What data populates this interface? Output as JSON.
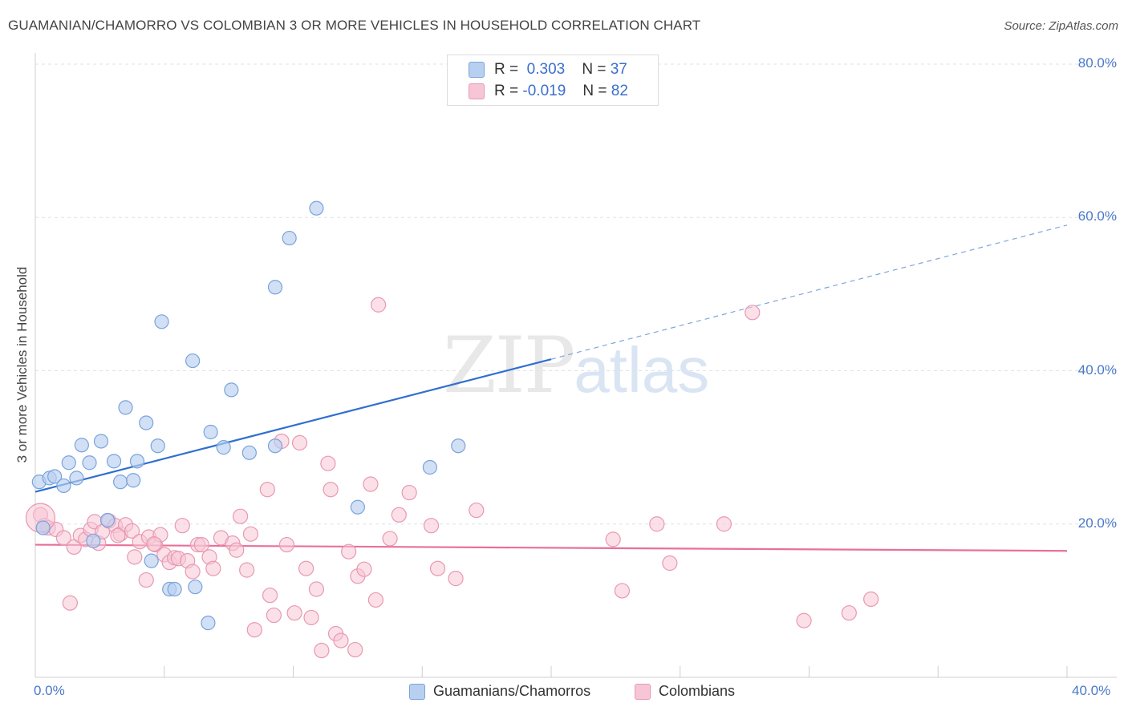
{
  "title": "GUAMANIAN/CHAMORRO VS COLOMBIAN 3 OR MORE VEHICLES IN HOUSEHOLD CORRELATION CHART",
  "source": "Source: ZipAtlas.com",
  "watermark": {
    "zip": "ZIP",
    "atlas": "atlas"
  },
  "legend": {
    "rows": [
      {
        "r_label": "R =",
        "r_value": "0.303",
        "n_label": "N =",
        "n_value": "37"
      },
      {
        "r_label": "R =",
        "r_value": "-0.019",
        "n_label": "N =",
        "n_value": "82"
      }
    ]
  },
  "bottom_legend": [
    "Guamanians/Chamorros",
    "Colombians"
  ],
  "colors": {
    "blue_fill": "#b8d0f0",
    "blue_stroke": "#7aa3dc",
    "blue_line": "#2f6fd0",
    "pink_fill": "#f7c6d6",
    "pink_stroke": "#e898b3",
    "pink_line": "#e8709a",
    "tick_text": "#4a78c8"
  },
  "chart_data": {
    "type": "scatter",
    "title": "GUAMANIAN/CHAMORRO VS COLOMBIAN 3 OR MORE VEHICLES IN HOUSEHOLD CORRELATION CHART",
    "xlabel": "",
    "ylabel": "3 or more Vehicles in Household",
    "xlim": [
      0,
      40
    ],
    "ylim": [
      0,
      80
    ],
    "x_tick_labels": [
      "0.0%",
      "40.0%"
    ],
    "y_tick_labels": [
      "20.0%",
      "40.0%",
      "60.0%",
      "80.0%"
    ],
    "y_ticks": [
      20,
      40,
      60,
      80
    ],
    "grid": true,
    "legend_placement": "top-center",
    "series": [
      {
        "name": "Guamanians/Chamorros",
        "color": "#b8d0f0",
        "r": 0.303,
        "n": 37,
        "trend": {
          "x0": 0,
          "y0": 24.2,
          "x1": 20,
          "y1": 41.5,
          "dashed_to_x": 40,
          "dashed_to_y": 59
        },
        "points": [
          [
            0.15,
            25.5
          ],
          [
            0.3,
            19.5
          ],
          [
            0.55,
            26
          ],
          [
            0.75,
            26.2
          ],
          [
            1.1,
            25
          ],
          [
            1.3,
            28
          ],
          [
            1.6,
            26
          ],
          [
            1.8,
            30.3
          ],
          [
            2.1,
            28
          ],
          [
            2.55,
            30.8
          ],
          [
            2.8,
            20.5
          ],
          [
            3.05,
            28.2
          ],
          [
            3.3,
            25.5
          ],
          [
            3.5,
            35.2
          ],
          [
            3.8,
            25.7
          ],
          [
            3.95,
            28.2
          ],
          [
            4.3,
            33.2
          ],
          [
            4.5,
            15.2
          ],
          [
            4.75,
            30.2
          ],
          [
            4.9,
            46.4
          ],
          [
            5.2,
            11.5
          ],
          [
            5.4,
            11.5
          ],
          [
            6.1,
            41.3
          ],
          [
            6.2,
            11.8
          ],
          [
            6.7,
            7.1
          ],
          [
            6.8,
            32
          ],
          [
            7.3,
            30
          ],
          [
            7.6,
            37.5
          ],
          [
            8.3,
            29.3
          ],
          [
            9.3,
            30.2
          ],
          [
            9.3,
            50.9
          ],
          [
            9.85,
            57.3
          ],
          [
            10.9,
            61.2
          ],
          [
            12.5,
            22.2
          ],
          [
            15.3,
            27.4
          ],
          [
            16.4,
            30.2
          ],
          [
            2.25,
            17.8
          ]
        ]
      },
      {
        "name": "Colombians",
        "color": "#f7c6d6",
        "r": -0.019,
        "n": 82,
        "trend": {
          "x0": 0,
          "y0": 17.3,
          "x1": 40,
          "y1": 16.5
        },
        "points": [
          [
            0.2,
            21.2
          ],
          [
            0.35,
            19.8
          ],
          [
            0.5,
            19.5
          ],
          [
            0.8,
            19.3
          ],
          [
            1.1,
            18.2
          ],
          [
            1.35,
            9.7
          ],
          [
            1.5,
            17
          ],
          [
            1.75,
            18.5
          ],
          [
            1.95,
            18
          ],
          [
            2.15,
            19.3
          ],
          [
            2.3,
            20.3
          ],
          [
            2.45,
            17.5
          ],
          [
            2.6,
            19
          ],
          [
            2.85,
            20.4
          ],
          [
            3.1,
            19.8
          ],
          [
            3.3,
            18.7
          ],
          [
            3.5,
            19.9
          ],
          [
            3.75,
            19.1
          ],
          [
            3.85,
            15.7
          ],
          [
            4.05,
            17.7
          ],
          [
            4.3,
            12.7
          ],
          [
            4.4,
            18.3
          ],
          [
            4.65,
            17.3
          ],
          [
            4.85,
            18.6
          ],
          [
            5.0,
            16
          ],
          [
            5.2,
            15
          ],
          [
            5.4,
            15.6
          ],
          [
            5.55,
            15.5
          ],
          [
            5.7,
            19.8
          ],
          [
            5.9,
            15.2
          ],
          [
            6.1,
            13.8
          ],
          [
            6.3,
            17.3
          ],
          [
            6.45,
            17.3
          ],
          [
            6.75,
            15.7
          ],
          [
            6.9,
            14.2
          ],
          [
            7.2,
            18.2
          ],
          [
            7.65,
            17.5
          ],
          [
            7.8,
            16.6
          ],
          [
            7.95,
            21
          ],
          [
            8.2,
            14
          ],
          [
            8.35,
            18.7
          ],
          [
            8.5,
            6.2
          ],
          [
            9.0,
            24.5
          ],
          [
            9.1,
            10.7
          ],
          [
            9.25,
            8.1
          ],
          [
            9.55,
            30.8
          ],
          [
            9.75,
            17.3
          ],
          [
            10.05,
            8.4
          ],
          [
            10.25,
            30.6
          ],
          [
            10.5,
            14.2
          ],
          [
            10.7,
            7.8
          ],
          [
            10.9,
            11.5
          ],
          [
            11.1,
            3.5
          ],
          [
            11.35,
            27.9
          ],
          [
            11.45,
            24.5
          ],
          [
            11.65,
            5.7
          ],
          [
            11.85,
            4.8
          ],
          [
            12.15,
            16.4
          ],
          [
            12.4,
            3.6
          ],
          [
            12.5,
            13.2
          ],
          [
            12.75,
            14.1
          ],
          [
            13,
            25.2
          ],
          [
            13.2,
            10.1
          ],
          [
            13.3,
            48.6
          ],
          [
            13.75,
            18.1
          ],
          [
            14.1,
            21.2
          ],
          [
            14.5,
            24.1
          ],
          [
            15.35,
            19.8
          ],
          [
            15.6,
            14.2
          ],
          [
            16.3,
            12.9
          ],
          [
            17.1,
            21.8
          ],
          [
            22.4,
            18
          ],
          [
            22.75,
            11.3
          ],
          [
            24.1,
            20
          ],
          [
            24.6,
            14.9
          ],
          [
            26.7,
            20
          ],
          [
            27.8,
            47.6
          ],
          [
            29.8,
            7.4
          ],
          [
            31.55,
            8.4
          ],
          [
            32.4,
            10.2
          ],
          [
            3.2,
            18.5
          ],
          [
            4.6,
            17.4
          ]
        ]
      }
    ]
  }
}
